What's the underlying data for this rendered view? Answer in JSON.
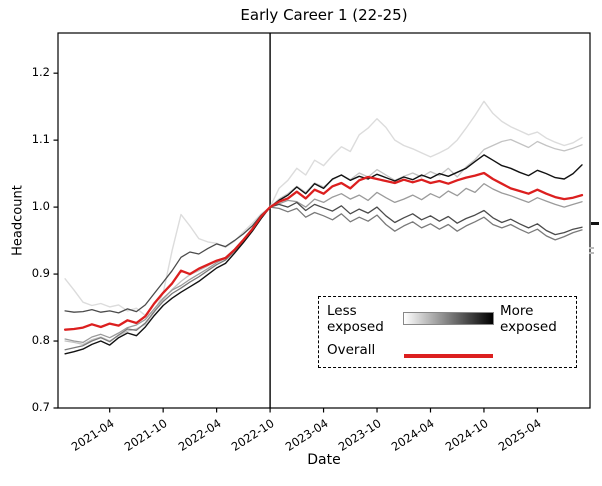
{
  "chart_data": {
    "type": "line",
    "title": "Early Career 1 (22-25)",
    "xlabel": "Date",
    "ylabel": "Headcount",
    "ylim": [
      0.7,
      1.26
    ],
    "y_ticks": [
      0.7,
      0.8,
      0.9,
      1.0,
      1.1,
      1.2
    ],
    "x_ticks": [
      "2021-04",
      "2021-10",
      "2022-04",
      "2022-10",
      "2023-04",
      "2023-10",
      "2024-04",
      "2024-10",
      "2025-04"
    ],
    "reference_line_x": "2022-10",
    "grid": false,
    "legend_position": "lower right inside",
    "categories": [
      "2020-11",
      "2020-12",
      "2021-01",
      "2021-02",
      "2021-03",
      "2021-04",
      "2021-05",
      "2021-06",
      "2021-07",
      "2021-08",
      "2021-09",
      "2021-10",
      "2021-11",
      "2021-12",
      "2022-01",
      "2022-02",
      "2022-03",
      "2022-04",
      "2022-05",
      "2022-06",
      "2022-07",
      "2022-08",
      "2022-09",
      "2022-10",
      "2022-11",
      "2022-12",
      "2023-01",
      "2023-02",
      "2023-03",
      "2023-04",
      "2023-05",
      "2023-06",
      "2023-07",
      "2023-08",
      "2023-09",
      "2023-10",
      "2023-11",
      "2023-12",
      "2024-01",
      "2024-02",
      "2024-03",
      "2024-04",
      "2024-05",
      "2024-06",
      "2024-07",
      "2024-08",
      "2024-09",
      "2024-10",
      "2024-11",
      "2024-12",
      "2025-01",
      "2025-02",
      "2025-03",
      "2025-04",
      "2025-05",
      "2025-06",
      "2025-07",
      "2025-08",
      "2025-09"
    ],
    "series": [
      {
        "name": "exposure-bin-1-least-exposed",
        "color": "#dcdcdc",
        "width": 1.4,
        "values": [
          0.893,
          0.876,
          0.858,
          0.853,
          0.856,
          0.851,
          0.854,
          0.845,
          0.849,
          0.838,
          0.843,
          0.872,
          0.935,
          0.989,
          0.972,
          0.953,
          0.948,
          0.946,
          0.94,
          0.949,
          0.963,
          0.976,
          0.99,
          1.0,
          1.028,
          1.04,
          1.058,
          1.048,
          1.07,
          1.062,
          1.077,
          1.09,
          1.083,
          1.108,
          1.118,
          1.132,
          1.119,
          1.1,
          1.092,
          1.087,
          1.081,
          1.075,
          1.081,
          1.088,
          1.1,
          1.118,
          1.137,
          1.158,
          1.14,
          1.128,
          1.12,
          1.114,
          1.108,
          1.112,
          1.103,
          1.097,
          1.092,
          1.096,
          1.104
        ]
      },
      {
        "name": "exposure-bin-2",
        "color": "#c3c3c3",
        "width": 1.3,
        "values": [
          0.8,
          0.798,
          0.795,
          0.802,
          0.806,
          0.8,
          0.808,
          0.815,
          0.818,
          0.825,
          0.843,
          0.862,
          0.877,
          0.889,
          0.899,
          0.905,
          0.912,
          0.92,
          0.925,
          0.937,
          0.951,
          0.966,
          0.986,
          1.0,
          1.012,
          1.02,
          1.031,
          1.022,
          1.036,
          1.03,
          1.041,
          1.048,
          1.041,
          1.051,
          1.045,
          1.056,
          1.048,
          1.04,
          1.046,
          1.051,
          1.045,
          1.053,
          1.047,
          1.058,
          1.045,
          1.06,
          1.071,
          1.086,
          1.092,
          1.098,
          1.101,
          1.095,
          1.089,
          1.098,
          1.092,
          1.087,
          1.084,
          1.088,
          1.093
        ]
      },
      {
        "name": "exposure-bin-3",
        "color": "#9b9b9b",
        "width": 1.3,
        "values": [
          0.803,
          0.8,
          0.798,
          0.806,
          0.81,
          0.805,
          0.812,
          0.82,
          0.824,
          0.832,
          0.848,
          0.864,
          0.876,
          0.883,
          0.892,
          0.9,
          0.908,
          0.917,
          0.924,
          0.937,
          0.952,
          0.968,
          0.986,
          1.0,
          1.005,
          1.01,
          1.008,
          1.0,
          1.012,
          1.007,
          1.015,
          1.02,
          1.012,
          1.018,
          1.01,
          1.022,
          1.014,
          1.007,
          1.012,
          1.018,
          1.011,
          1.02,
          1.014,
          1.024,
          1.017,
          1.028,
          1.022,
          1.035,
          1.027,
          1.021,
          1.017,
          1.012,
          1.007,
          1.014,
          1.009,
          1.004,
          1.0,
          1.004,
          1.008
        ]
      },
      {
        "name": "exposure-bin-4",
        "color": "#7a7a7a",
        "width": 1.3,
        "values": [
          0.787,
          0.79,
          0.793,
          0.8,
          0.805,
          0.799,
          0.809,
          0.818,
          0.816,
          0.827,
          0.844,
          0.859,
          0.871,
          0.879,
          0.888,
          0.896,
          0.905,
          0.914,
          0.921,
          0.934,
          0.949,
          0.965,
          0.984,
          1.0,
          0.998,
          0.993,
          0.998,
          0.985,
          0.992,
          0.987,
          0.981,
          0.99,
          0.978,
          0.985,
          0.979,
          0.988,
          0.974,
          0.964,
          0.972,
          0.978,
          0.969,
          0.975,
          0.967,
          0.974,
          0.964,
          0.972,
          0.978,
          0.985,
          0.974,
          0.969,
          0.974,
          0.967,
          0.961,
          0.967,
          0.957,
          0.951,
          0.956,
          0.962,
          0.966
        ]
      },
      {
        "name": "exposure-bin-5",
        "color": "#4b4b4b",
        "width": 1.3,
        "values": [
          0.845,
          0.843,
          0.844,
          0.847,
          0.843,
          0.845,
          0.842,
          0.848,
          0.844,
          0.854,
          0.871,
          0.888,
          0.905,
          0.925,
          0.933,
          0.93,
          0.938,
          0.945,
          0.941,
          0.95,
          0.96,
          0.972,
          0.988,
          1.0,
          1.004,
          1.0,
          1.007,
          0.995,
          1.004,
          0.999,
          0.994,
          1.002,
          0.99,
          0.997,
          0.991,
          1.0,
          0.987,
          0.977,
          0.984,
          0.99,
          0.981,
          0.987,
          0.979,
          0.986,
          0.976,
          0.983,
          0.988,
          0.995,
          0.984,
          0.977,
          0.982,
          0.975,
          0.969,
          0.975,
          0.965,
          0.959,
          0.962,
          0.967,
          0.97
        ]
      },
      {
        "name": "exposure-bin-6-most-exposed",
        "color": "#121212",
        "width": 1.4,
        "values": [
          0.781,
          0.784,
          0.788,
          0.795,
          0.8,
          0.794,
          0.805,
          0.812,
          0.808,
          0.821,
          0.838,
          0.853,
          0.864,
          0.873,
          0.881,
          0.889,
          0.899,
          0.909,
          0.916,
          0.931,
          0.947,
          0.964,
          0.983,
          1.0,
          1.01,
          1.018,
          1.03,
          1.02,
          1.035,
          1.028,
          1.042,
          1.048,
          1.04,
          1.046,
          1.042,
          1.049,
          1.044,
          1.039,
          1.045,
          1.041,
          1.048,
          1.043,
          1.05,
          1.046,
          1.052,
          1.058,
          1.068,
          1.078,
          1.07,
          1.062,
          1.058,
          1.052,
          1.047,
          1.055,
          1.05,
          1.044,
          1.042,
          1.05,
          1.063
        ]
      },
      {
        "name": "overall",
        "color": "#dc1f1f",
        "width": 2.3,
        "values": [
          0.817,
          0.818,
          0.82,
          0.825,
          0.821,
          0.826,
          0.823,
          0.831,
          0.827,
          0.837,
          0.856,
          0.872,
          0.886,
          0.905,
          0.9,
          0.908,
          0.914,
          0.92,
          0.924,
          0.936,
          0.951,
          0.967,
          0.986,
          1.0,
          1.008,
          1.013,
          1.023,
          1.013,
          1.026,
          1.02,
          1.031,
          1.036,
          1.028,
          1.04,
          1.045,
          1.042,
          1.039,
          1.036,
          1.041,
          1.037,
          1.041,
          1.036,
          1.039,
          1.035,
          1.04,
          1.044,
          1.047,
          1.051,
          1.042,
          1.035,
          1.028,
          1.024,
          1.02,
          1.026,
          1.02,
          1.015,
          1.012,
          1.014,
          1.018
        ]
      }
    ]
  },
  "legend": {
    "less_line1": "Less",
    "less_line2": "exposed",
    "more_line1": "More",
    "more_line2": "exposed",
    "overall_label": "Overall"
  },
  "colors": {
    "overall_line": "#dc1f1f",
    "axis": "#000000",
    "gradient_start": "#ffffff",
    "gradient_end": "#000000"
  }
}
